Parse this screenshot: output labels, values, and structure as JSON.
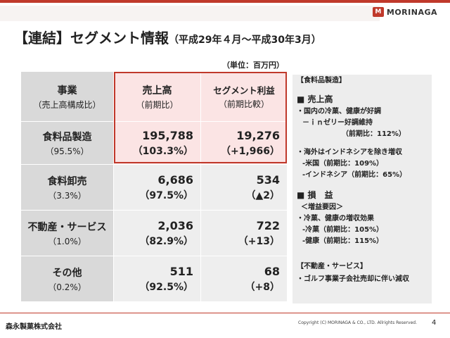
{
  "header": {
    "logo_mark": "M",
    "logo_text": "MORINAGA",
    "title": "【連結】セグメント情報",
    "period": "（平成29年４月～平成30年3月）",
    "unit": "（単位：百万円）"
  },
  "table": {
    "header": {
      "segment": "事業",
      "segment_sub": "（売上高構成比）",
      "sales": "売上高",
      "sales_sub": "（前期比）",
      "profit": "セグメント利益",
      "profit_sub": "（前期比較）"
    },
    "rows": [
      {
        "segment": "食料品製造",
        "share": "（95.5%）",
        "sales": "195,788",
        "sales_change": "（103.3%）",
        "profit": "19,276",
        "profit_change": "（+1,966）"
      },
      {
        "segment": "食料卸売",
        "share": "（3.3%）",
        "sales": "6,686",
        "sales_change": "（97.5%）",
        "profit": "534",
        "profit_change": "（▲2）"
      },
      {
        "segment": "不動産・サービス",
        "share": "（1.0%）",
        "sales": "2,036",
        "sales_change": "（82.9%）",
        "profit": "722",
        "profit_change": "（+13）"
      },
      {
        "segment": "その他",
        "share": "（0.2%）",
        "sales": "511",
        "sales_change": "（92.5%）",
        "profit": "68",
        "profit_change": "（+8）"
      }
    ]
  },
  "panel": {
    "food_title": "【食料品製造】",
    "sales_heading": "■ 売上高",
    "sales_lines": [
      "・国内の冷菓、健康が好調",
      "－ｉｎゼリー好調維持",
      "（前期比：112%）",
      "・海外はインドネシアを除き増収",
      "-米国（前期比：109%）",
      "-インドネシア（前期比：65%）"
    ],
    "profit_heading": "■ 損　益",
    "profit_lines": [
      "＜増益要因＞",
      "・冷菓、健康の増収効果",
      "-冷菓（前期比：105%）",
      "-健康（前期比：115%）"
    ],
    "realestate_title": "【不動産・サービス】",
    "realestate_line": "・ゴルフ事業子会社売却に伴い減収"
  },
  "footer": {
    "company": "森永製菓株式会社",
    "copyright": "Copyright (C) MORINAGA & CO., LTD. Allrights Reserved.",
    "page": "4"
  }
}
